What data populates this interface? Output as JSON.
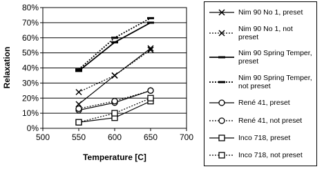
{
  "chart_data": {
    "type": "line",
    "x_label": "Temperature [C]",
    "y_label": "Relaxation",
    "x": [
      550,
      600,
      650
    ],
    "xlim": [
      500,
      700
    ],
    "xticks": [
      500,
      550,
      600,
      650,
      700
    ],
    "ylim": [
      0,
      80
    ],
    "yticks": [
      {
        "value": 0,
        "label": "0%"
      },
      {
        "value": 10,
        "label": "10%"
      },
      {
        "value": 20,
        "label": "20%"
      },
      {
        "value": 30,
        "label": "30%"
      },
      {
        "value": 40,
        "label": "40%"
      },
      {
        "value": 50,
        "label": "50%"
      },
      {
        "value": 60,
        "label": "60%"
      },
      {
        "value": 70,
        "label": "70%"
      },
      {
        "value": 80,
        "label": "80%"
      }
    ],
    "grid": true,
    "series": [
      {
        "name": "Nim 90 No 1, preset",
        "color": "#000000",
        "style": "solid",
        "marker": "x",
        "values": [
          16,
          35,
          53
        ]
      },
      {
        "name": "Nim 90 No 1, not preset",
        "color": "#000000",
        "style": "dotted",
        "marker": "x",
        "values": [
          24,
          35,
          52
        ]
      },
      {
        "name": "Nim 90 Spring Temper, preset",
        "color": "#000000",
        "style": "solid",
        "marker": "dash",
        "values": [
          38,
          57,
          70
        ]
      },
      {
        "name": "Nim 90 Spring Temper, not preset",
        "color": "#000000",
        "style": "dotted",
        "marker": "dash",
        "values": [
          39,
          60,
          73
        ]
      },
      {
        "name": "René 41, preset",
        "color": "#000000",
        "style": "solid",
        "marker": "circle",
        "values": [
          12,
          17,
          25
        ]
      },
      {
        "name": "René 41, not preset",
        "color": "#000000",
        "style": "dotted",
        "marker": "circle",
        "values": [
          13,
          18,
          25
        ]
      },
      {
        "name": "Inco 718, preset",
        "color": "#000000",
        "style": "solid",
        "marker": "square",
        "values": [
          4,
          7,
          18
        ]
      },
      {
        "name": "Inco 718, not preset",
        "color": "#000000",
        "style": "dotted",
        "marker": "square",
        "values": [
          4,
          10,
          20
        ]
      }
    ]
  }
}
